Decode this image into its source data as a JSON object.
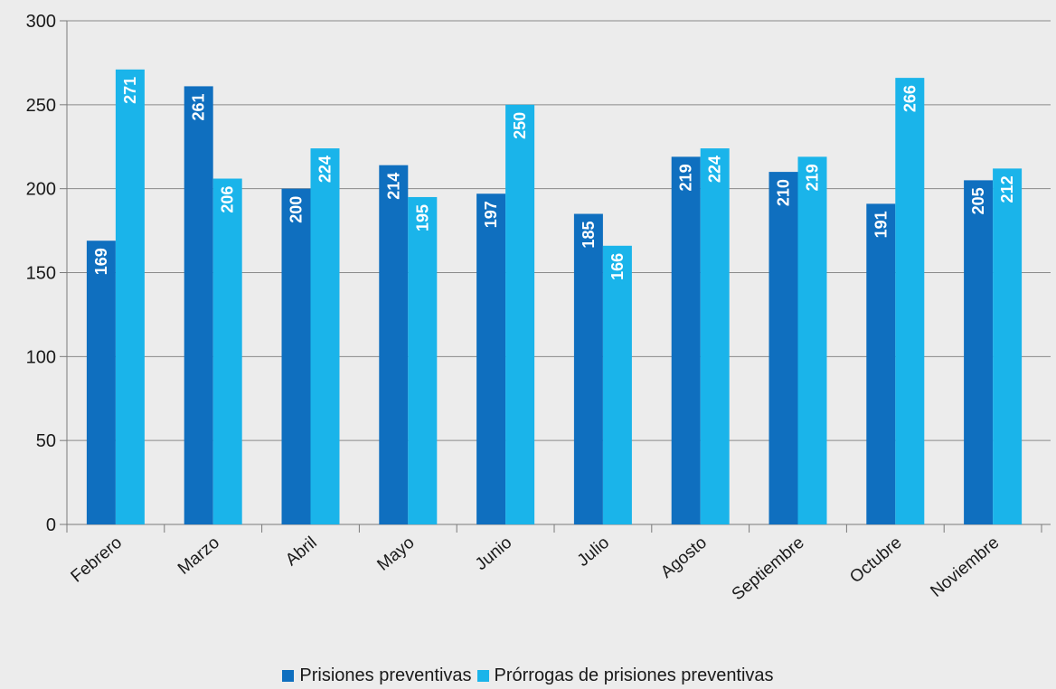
{
  "chart_data": {
    "type": "bar",
    "title": "",
    "xlabel": "",
    "ylabel": "",
    "categories": [
      "Febrero",
      "Marzo",
      "Abril",
      "Mayo",
      "Junio",
      "Julio",
      "Agosto",
      "Septiembre",
      "Octubre",
      "Noviembre"
    ],
    "series": [
      {
        "name": "Prisiones preventivas",
        "color": "#0f6fbf",
        "values": [
          169,
          261,
          200,
          214,
          197,
          185,
          219,
          210,
          191,
          205
        ]
      },
      {
        "name": "Prórrogas de prisiones preventivas",
        "color": "#1ab4ea",
        "values": [
          271,
          206,
          224,
          195,
          250,
          166,
          224,
          219,
          266,
          212
        ]
      }
    ],
    "ylim": [
      0,
      300
    ],
    "yticks": [
      0,
      50,
      100,
      150,
      200,
      250,
      300
    ],
    "grid": true,
    "legend_position": "bottom-center",
    "data_labels": true
  }
}
